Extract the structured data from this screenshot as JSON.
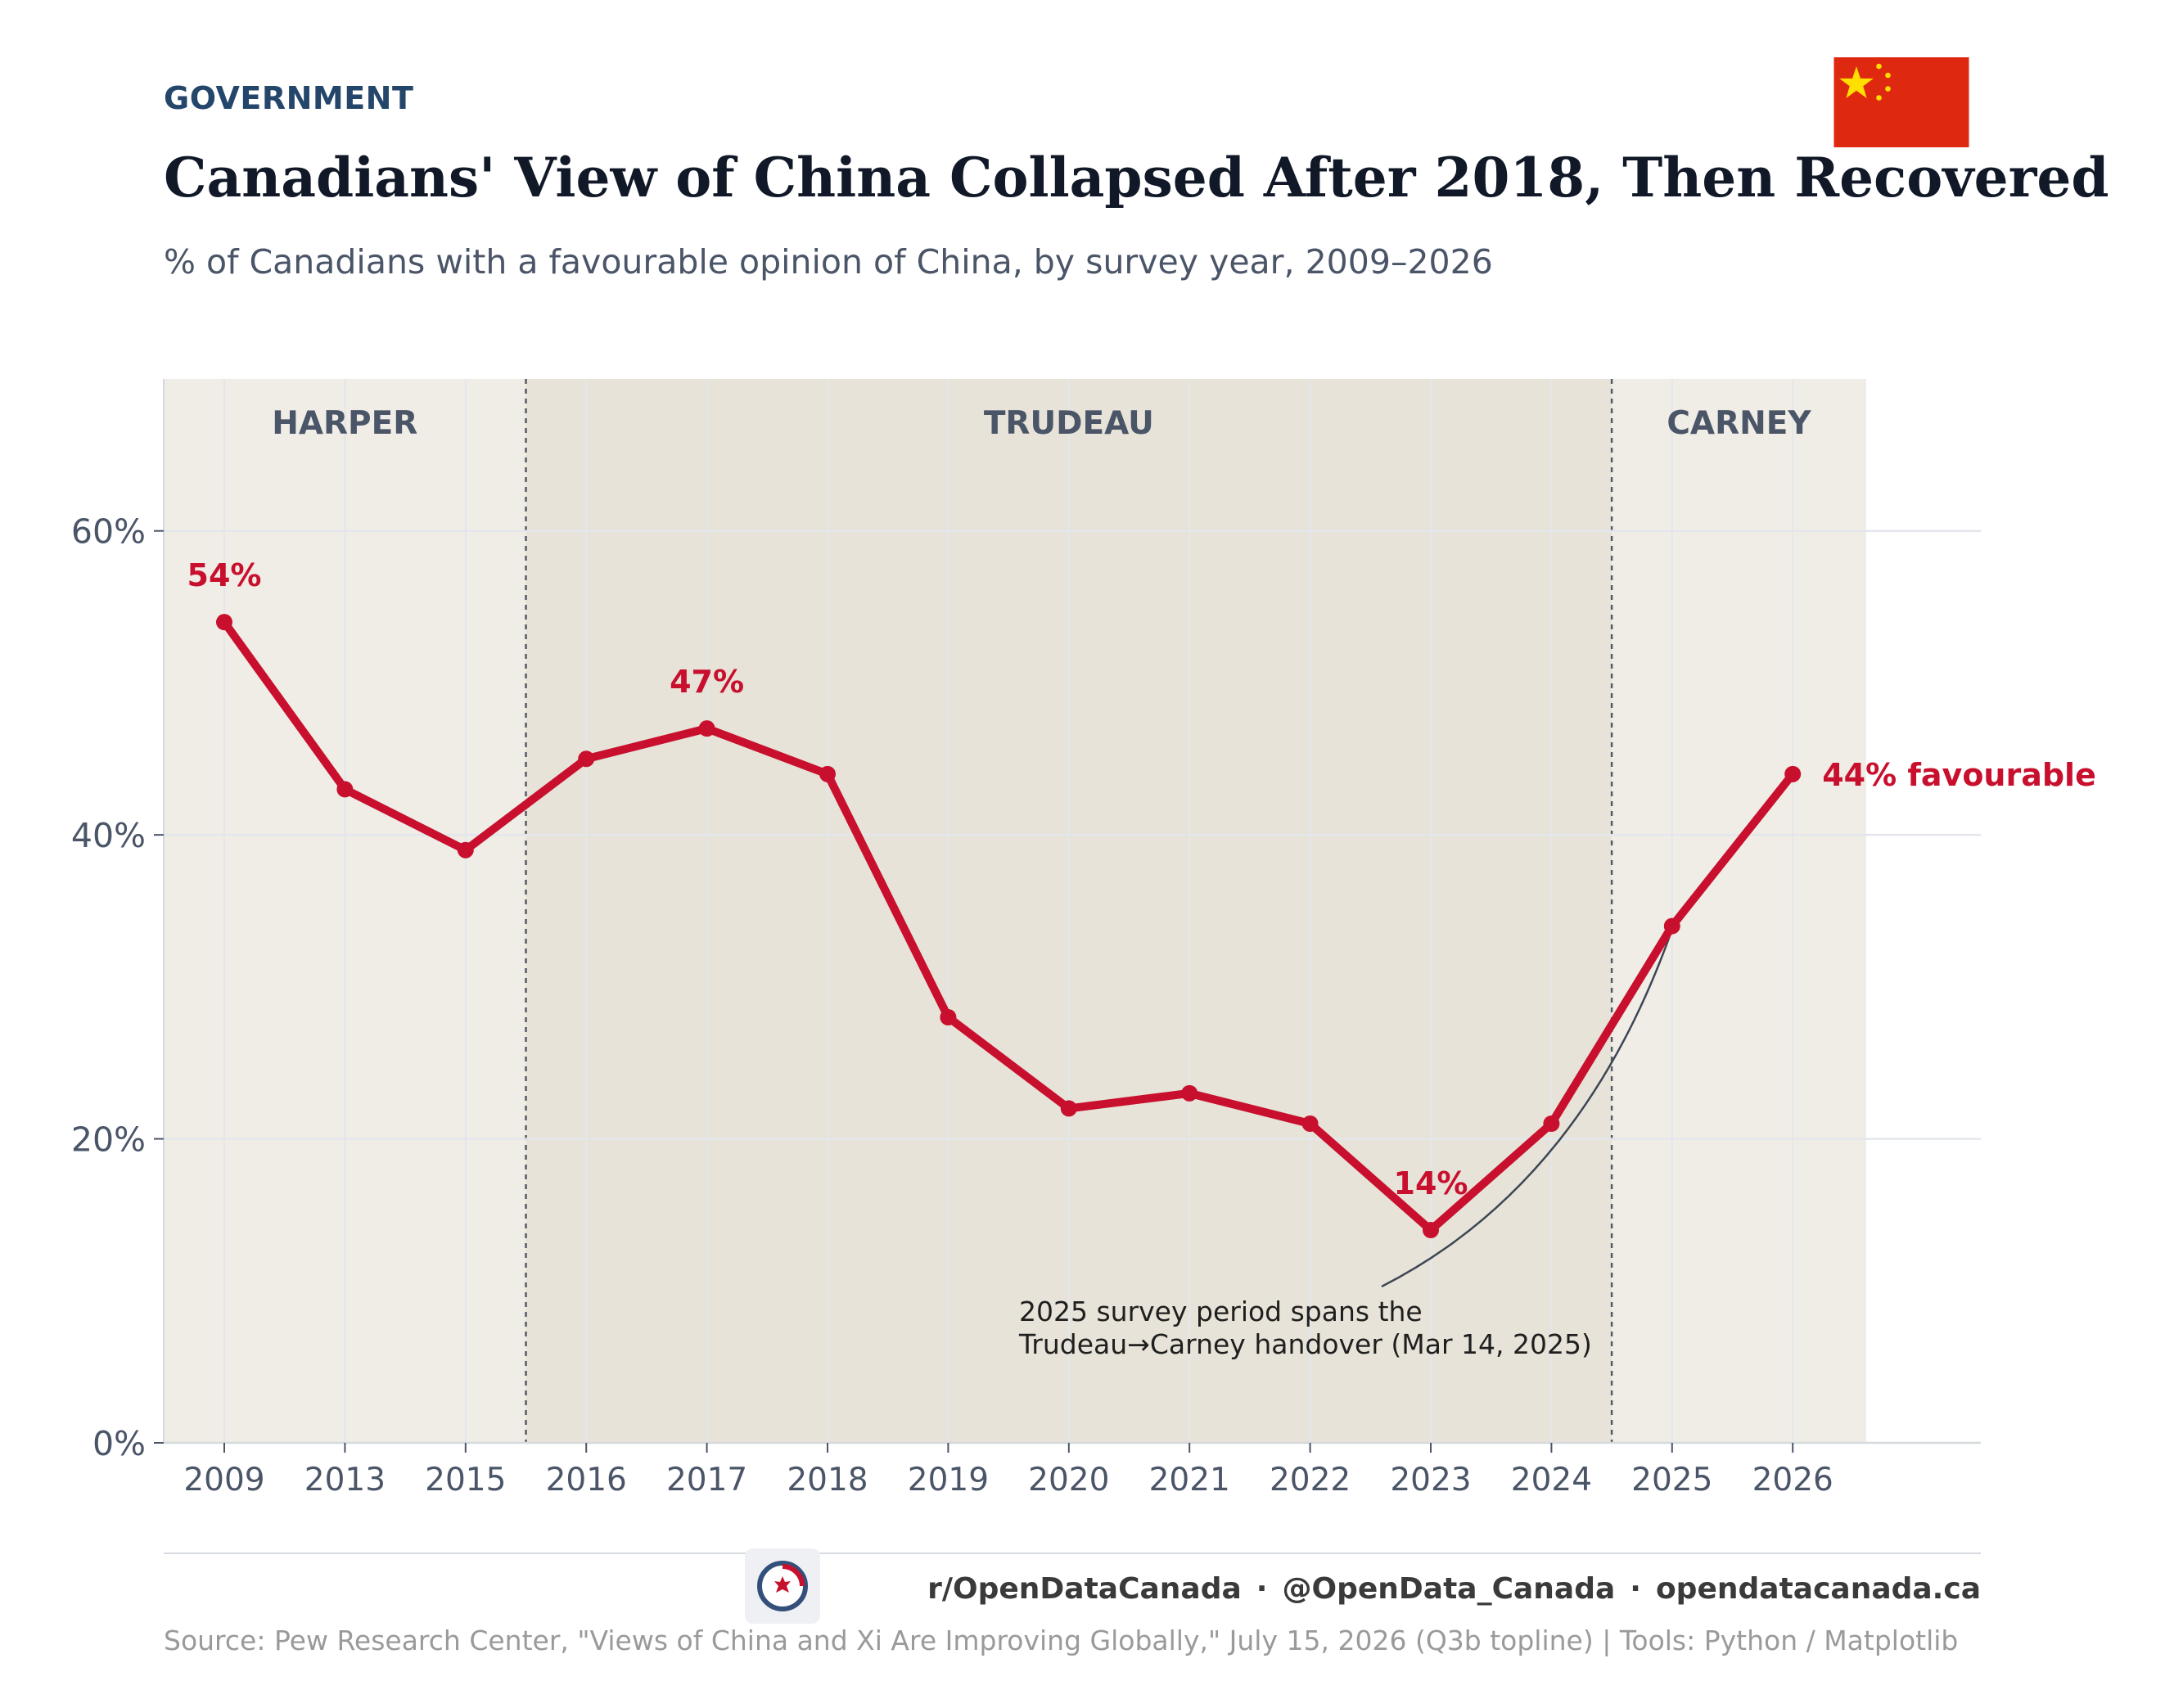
{
  "header": {
    "category": "GOVERNMENT",
    "title": "Canadians' View of China Collapsed After 2018, Then Recovered",
    "subtitle": "% of Canadians with a favourable opinion of China, by survey year, 2009–2026",
    "flag_icon": "china-flag-icon"
  },
  "chart_data": {
    "type": "line",
    "categories": [
      "2009",
      "2013",
      "2015",
      "2016",
      "2017",
      "2018",
      "2019",
      "2020",
      "2021",
      "2022",
      "2023",
      "2024",
      "2025",
      "2026"
    ],
    "series": [
      {
        "values": [
          54,
          43,
          39,
          45,
          47,
          44,
          28,
          22,
          23,
          21,
          14,
          21,
          34,
          44
        ],
        "color": "#c8102e"
      }
    ],
    "ylim": [
      0,
      70
    ],
    "yticks": [
      0,
      20,
      40,
      60
    ],
    "ytick_labels": [
      "0%",
      "20%",
      "40%",
      "60%"
    ],
    "grid": true,
    "periods": [
      {
        "label": "HARPER",
        "from": "2009",
        "to": "2015",
        "color": "#f0ede6"
      },
      {
        "label": "TRUDEAU",
        "from": "2016",
        "to": "2024",
        "color": "#e7e3d8"
      },
      {
        "label": "CARNEY",
        "from": "2025",
        "to": "2026",
        "color": "#f0ede6"
      }
    ],
    "point_labels": [
      {
        "category": "2009",
        "text": "54%"
      },
      {
        "category": "2017",
        "text": "47%"
      },
      {
        "category": "2023",
        "text": "14%"
      },
      {
        "category": "2026",
        "text": "44% favourable"
      }
    ],
    "annotation": {
      "lines": [
        "2025 survey period spans the",
        "Trudeau→Carney handover (Mar 14, 2025)"
      ],
      "points_to": "2025"
    }
  },
  "footer": {
    "logo_icon": "opendatacanada-logo-icon",
    "reddit": "r/OpenDataCanada",
    "separator": "·",
    "twitter": "@OpenData_Canada",
    "website": "opendatacanada.ca",
    "source": "Source: Pew Research Center, \"Views of China and Xi Are Improving Globally,\" July 15, 2026 (Q3b topline)  |  Tools: Python / Matplotlib"
  }
}
